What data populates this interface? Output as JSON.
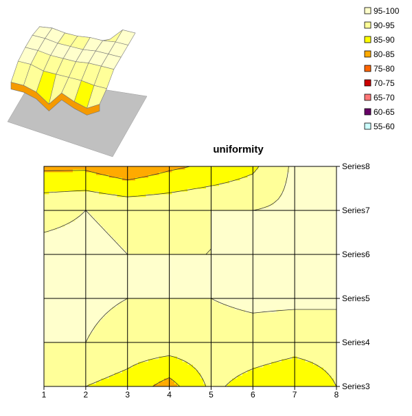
{
  "chart_data": [
    {
      "type": "surface-3d",
      "view": "3d-perspective",
      "note_visible": "wireframe surface with shadow plane"
    },
    {
      "type": "contour",
      "title": "uniformity",
      "x": [
        1,
        2,
        3,
        4,
        5,
        6,
        7,
        8
      ],
      "series": [
        {
          "name": "Series3",
          "values": [
            90,
            90,
            88,
            83,
            91,
            88,
            86,
            90
          ]
        },
        {
          "name": "Series4",
          "values": [
            95,
            95,
            93,
            93,
            93,
            93,
            92,
            92
          ]
        },
        {
          "name": "Series5",
          "values": [
            96,
            96,
            95,
            95,
            95,
            96,
            96,
            96
          ]
        },
        {
          "name": "Series6",
          "values": [
            96,
            96,
            95,
            95,
            95,
            96,
            96,
            96
          ]
        },
        {
          "name": "Series7",
          "values": [
            94,
            95,
            94,
            94,
            95,
            95,
            96,
            96
          ]
        },
        {
          "name": "Series8",
          "values": [
            84,
            84,
            81,
            84,
            86,
            89,
            96,
            96
          ]
        }
      ],
      "legend": {
        "position": "top-right",
        "entries": [
          {
            "label": "95-100",
            "color": "#ffffcc"
          },
          {
            "label": "90-95",
            "color": "#ffff99"
          },
          {
            "label": "85-90",
            "color": "#ffff00"
          },
          {
            "label": "80-85",
            "color": "#ffaa00"
          },
          {
            "label": "75-80",
            "color": "#ff6600"
          },
          {
            "label": "70-75",
            "color": "#cc0000"
          },
          {
            "label": "65-70",
            "color": "#ff7777"
          },
          {
            "label": "60-65",
            "color": "#660066"
          },
          {
            "label": "55-60",
            "color": "#ccffff"
          }
        ]
      },
      "grid": true
    }
  ]
}
